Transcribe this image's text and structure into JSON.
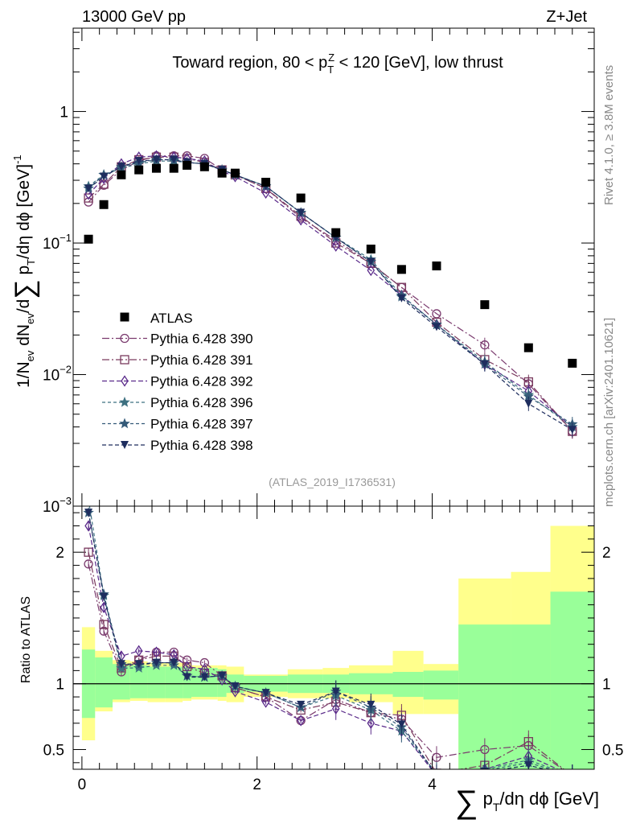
{
  "header": {
    "left": "13000 GeV pp",
    "right": "Z+Jet"
  },
  "side_labels": {
    "rivet": "Rivet 4.1.0, ≥ 3.8M events",
    "mcplots": "mcplots.cern.ch [arXiv:2401.10621]"
  },
  "chart_data": {
    "type": "line",
    "title": "Toward region, 80 < p_T^Z < 120 [GeV], low thrust",
    "title_parts": {
      "pre": "Toward region, 80 < p",
      "sub": "T",
      "sup": "Z",
      "post": " < 120 [GeV], low thrust"
    },
    "watermark": "(ATLAS_2019_I1736531)",
    "ylabel": "1/N_ev dN_ev/d∑ p_T/dη dϕ [GeV]^-1",
    "ratio_ylabel": "Ratio to ATLAS",
    "xlabel": "∑ p_T/dη dϕ [GeV]",
    "xlabel_parts": {
      "sum": "∑",
      "p": "p",
      "sub": "T",
      "rest": "/dη dϕ [GeV]"
    },
    "xlim": [
      -0.1,
      5.85
    ],
    "ylim_main": [
      0.001,
      4.3
    ],
    "ylim_ratio": [
      0.35,
      2.35
    ],
    "x_ticks": [
      "0",
      "2",
      "4"
    ],
    "y_ticks_main": [
      {
        "value": 1,
        "base": "1",
        "exp": ""
      },
      {
        "value": 0.1,
        "base": "10",
        "exp": "−1"
      },
      {
        "value": 0.01,
        "base": "10",
        "exp": "−2"
      },
      {
        "value": 0.001,
        "base": "10",
        "exp": "−3"
      }
    ],
    "y_ticks_ratio": [
      "0.5",
      "1",
      "2"
    ],
    "x": [
      0.075,
      0.25,
      0.45,
      0.65,
      0.85,
      1.05,
      1.2,
      1.4,
      1.6,
      1.75,
      2.1,
      2.5,
      2.9,
      3.3,
      3.65,
      4.05,
      4.6,
      5.1,
      5.6
    ],
    "bin_edges": [
      0.0,
      0.15,
      0.35,
      0.55,
      0.75,
      0.95,
      1.15,
      1.25,
      1.55,
      1.65,
      1.85,
      2.35,
      2.75,
      3.05,
      3.55,
      3.9,
      4.3,
      4.9,
      5.35,
      5.85
    ],
    "atlas": {
      "name": "ATLAS",
      "values": [
        0.107,
        0.196,
        0.33,
        0.36,
        0.37,
        0.37,
        0.39,
        0.38,
        0.34,
        0.34,
        0.29,
        0.22,
        0.12,
        0.09,
        0.063,
        0.067,
        0.034,
        0.016,
        0.0122
      ]
    },
    "series": [
      {
        "name": "Pythia 6.428 390",
        "marker": "circle-open",
        "color": "#7a3a6e",
        "dash": "9,3,2,3",
        "values": [
          0.205,
          0.275,
          0.36,
          0.42,
          0.46,
          0.46,
          0.46,
          0.44,
          0.36,
          0.33,
          0.26,
          0.155,
          0.105,
          0.07,
          0.046,
          0.029,
          0.0168,
          0.0085,
          0.0037
        ],
        "ratio": [
          1.91,
          1.4,
          1.09,
          1.18,
          1.24,
          1.24,
          1.18,
          1.16,
          1.06,
          0.97,
          0.9,
          0.72,
          0.88,
          0.78,
          0.73,
          0.44,
          0.5,
          0.53,
          0.3
        ]
      },
      {
        "name": "Pythia 6.428 391",
        "marker": "square-open",
        "color": "#7a3a5e",
        "dash": "9,3,2,3",
        "values": [
          0.22,
          0.28,
          0.38,
          0.43,
          0.45,
          0.45,
          0.44,
          0.41,
          0.36,
          0.33,
          0.26,
          0.16,
          0.1,
          0.07,
          0.046,
          0.025,
          0.013,
          0.0088,
          0.0037
        ],
        "ratio": [
          2.0,
          1.45,
          1.12,
          1.18,
          1.21,
          1.21,
          1.13,
          1.08,
          1.06,
          0.97,
          0.9,
          0.8,
          0.86,
          0.78,
          0.76,
          0.32,
          0.38,
          0.56,
          0.3
        ]
      },
      {
        "name": "Pythia 6.428 392",
        "marker": "diamond-open",
        "color": "#5a2a8a",
        "dash": "6,3",
        "values": [
          0.235,
          0.31,
          0.4,
          0.45,
          0.46,
          0.45,
          0.44,
          0.42,
          0.35,
          0.32,
          0.24,
          0.15,
          0.095,
          0.062,
          0.04,
          0.024,
          0.012,
          0.0075,
          0.004
        ],
        "ratio": [
          2.2,
          1.58,
          1.21,
          1.25,
          1.24,
          1.22,
          1.13,
          1.11,
          1.03,
          0.94,
          0.86,
          0.72,
          0.81,
          0.7,
          0.64,
          0.3,
          0.35,
          0.45,
          0.3
        ]
      },
      {
        "name": "Pythia 6.428 396",
        "marker": "star-open",
        "color": "#3d7080",
        "dash": "4,3",
        "values": [
          0.27,
          0.33,
          0.37,
          0.4,
          0.42,
          0.42,
          0.41,
          0.4,
          0.36,
          0.33,
          0.27,
          0.17,
          0.11,
          0.075,
          0.04,
          0.024,
          0.0125,
          0.007,
          0.004
        ],
        "ratio": [
          2.4,
          1.67,
          1.12,
          1.12,
          1.14,
          1.14,
          1.06,
          1.05,
          1.06,
          0.98,
          0.93,
          0.82,
          0.91,
          0.8,
          0.64,
          0.32,
          0.35,
          0.42,
          0.3
        ]
      },
      {
        "name": "Pythia 6.428 397",
        "marker": "star-open",
        "color": "#345a78",
        "dash": "4,3",
        "values": [
          0.26,
          0.33,
          0.38,
          0.41,
          0.43,
          0.43,
          0.41,
          0.4,
          0.36,
          0.33,
          0.27,
          0.17,
          0.11,
          0.072,
          0.039,
          0.024,
          0.012,
          0.0068,
          0.0042
        ],
        "ratio": [
          2.3,
          1.68,
          1.15,
          1.14,
          1.16,
          1.16,
          1.06,
          1.05,
          1.06,
          0.98,
          0.93,
          0.82,
          0.94,
          0.82,
          0.67,
          0.31,
          0.34,
          0.4,
          0.3
        ]
      },
      {
        "name": "Pythia 6.428 398",
        "marker": "triangle-down",
        "color": "#1e2d5e",
        "dash": "5,3",
        "values": [
          0.26,
          0.32,
          0.38,
          0.42,
          0.43,
          0.43,
          0.41,
          0.4,
          0.36,
          0.33,
          0.27,
          0.17,
          0.11,
          0.072,
          0.038,
          0.023,
          0.012,
          0.006,
          0.0038
        ],
        "ratio": [
          2.3,
          1.66,
          1.15,
          1.15,
          1.16,
          1.16,
          1.05,
          1.05,
          1.06,
          0.98,
          0.93,
          0.84,
          0.94,
          0.84,
          0.69,
          0.3,
          0.33,
          0.38,
          0.3
        ]
      }
    ],
    "ratio_band_green": [
      [
        0.74,
        1.26
      ],
      [
        0.82,
        1.2
      ],
      [
        0.88,
        1.15
      ],
      [
        0.89,
        1.14
      ],
      [
        0.89,
        1.13
      ],
      [
        0.89,
        1.13
      ],
      [
        0.89,
        1.13
      ],
      [
        0.9,
        1.12
      ],
      [
        0.9,
        1.11
      ],
      [
        0.93,
        1.07
      ],
      [
        0.94,
        1.06
      ],
      [
        0.93,
        1.07
      ],
      [
        0.93,
        1.07
      ],
      [
        0.92,
        1.08
      ],
      [
        0.9,
        1.09
      ],
      [
        0.88,
        1.1
      ],
      [
        0.3,
        1.45
      ],
      [
        0.3,
        1.45
      ],
      [
        0.3,
        1.7
      ]
    ],
    "ratio_band_yellow": [
      [
        0.57,
        1.43
      ],
      [
        0.79,
        1.25
      ],
      [
        0.86,
        1.18
      ],
      [
        0.87,
        1.17
      ],
      [
        0.86,
        1.16
      ],
      [
        0.86,
        1.16
      ],
      [
        0.87,
        1.16
      ],
      [
        0.88,
        1.14
      ],
      [
        0.87,
        1.14
      ],
      [
        0.86,
        1.13
      ],
      [
        0.9,
        1.07
      ],
      [
        0.89,
        1.11
      ],
      [
        0.89,
        1.12
      ],
      [
        0.86,
        1.14
      ],
      [
        0.77,
        1.25
      ],
      [
        0.77,
        1.15
      ],
      [
        0.3,
        1.8
      ],
      [
        0.3,
        1.85
      ],
      [
        0.3,
        2.2
      ]
    ]
  }
}
